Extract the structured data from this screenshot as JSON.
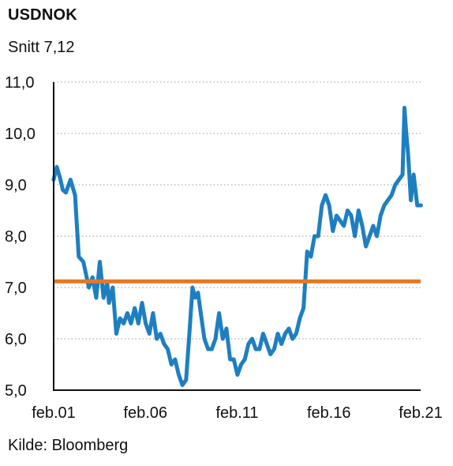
{
  "chart_data": {
    "type": "line",
    "title": "USDNOK",
    "subtitle": "Snitt 7,12",
    "source": "Kilde: Bloomberg",
    "xlabel": "",
    "ylabel": "",
    "x_tick_labels": [
      "feb.01",
      "feb.06",
      "feb.11",
      "feb.16",
      "feb.21"
    ],
    "x_tick_values": [
      2001.083,
      2006.083,
      2011.083,
      2016.083,
      2021.083
    ],
    "xlim": [
      2001.083,
      2021.083
    ],
    "y_tick_labels": [
      "5,0",
      "6,0",
      "7,0",
      "8,0",
      "9,0",
      "10,0",
      "11,0"
    ],
    "y_tick_values": [
      5,
      6,
      7,
      8,
      9,
      10,
      11
    ],
    "ylim": [
      5,
      11
    ],
    "grid": "horizontal dotted",
    "colors": {
      "series": "#1e7fc0",
      "average": "#e87722",
      "grid": "#9a9a9a",
      "axis": "#111111"
    },
    "series": [
      {
        "name": "USDNOK",
        "x": [
          2001.08,
          2001.25,
          2001.42,
          2001.58,
          2001.75,
          2002.0,
          2002.25,
          2002.45,
          2002.7,
          2003.0,
          2003.2,
          2003.4,
          2003.6,
          2003.8,
          2004.0,
          2004.1,
          2004.3,
          2004.5,
          2004.7,
          2004.9,
          2005.1,
          2005.3,
          2005.5,
          2005.7,
          2005.9,
          2006.1,
          2006.3,
          2006.5,
          2006.7,
          2006.9,
          2007.1,
          2007.3,
          2007.5,
          2007.7,
          2007.9,
          2008.1,
          2008.3,
          2008.5,
          2008.65,
          2008.8,
          2008.95,
          2009.1,
          2009.3,
          2009.5,
          2009.7,
          2009.9,
          2010.1,
          2010.3,
          2010.5,
          2010.7,
          2010.9,
          2011.1,
          2011.3,
          2011.5,
          2011.7,
          2011.9,
          2012.1,
          2012.3,
          2012.5,
          2012.7,
          2012.9,
          2013.1,
          2013.3,
          2013.5,
          2013.7,
          2013.9,
          2014.1,
          2014.3,
          2014.5,
          2014.7,
          2014.9,
          2015.1,
          2015.3,
          2015.5,
          2015.7,
          2015.9,
          2016.1,
          2016.3,
          2016.5,
          2016.7,
          2016.9,
          2017.1,
          2017.3,
          2017.5,
          2017.7,
          2017.9,
          2018.1,
          2018.3,
          2018.5,
          2018.7,
          2018.9,
          2019.1,
          2019.3,
          2019.5,
          2019.7,
          2019.9,
          2020.1,
          2020.2,
          2020.28,
          2020.4,
          2020.55,
          2020.7,
          2020.9,
          2021.1
        ],
        "values": [
          9.1,
          9.35,
          9.15,
          8.9,
          8.85,
          9.1,
          8.8,
          7.6,
          7.5,
          7.0,
          7.2,
          6.8,
          7.5,
          6.8,
          7.1,
          6.7,
          7.0,
          6.1,
          6.4,
          6.3,
          6.5,
          6.3,
          6.6,
          6.3,
          6.7,
          6.3,
          6.1,
          6.5,
          6.0,
          6.1,
          5.9,
          5.8,
          5.5,
          5.6,
          5.3,
          5.1,
          5.2,
          6.2,
          7.0,
          6.8,
          6.9,
          6.5,
          6.0,
          5.8,
          5.8,
          6.0,
          6.5,
          6.0,
          6.2,
          5.6,
          5.6,
          5.3,
          5.5,
          5.6,
          5.9,
          6.0,
          5.8,
          5.8,
          6.1,
          5.9,
          5.7,
          5.8,
          6.1,
          5.9,
          6.1,
          6.2,
          6.0,
          6.1,
          6.4,
          6.6,
          7.7,
          7.6,
          8.0,
          8.0,
          8.6,
          8.8,
          8.6,
          8.1,
          8.4,
          8.3,
          8.2,
          8.5,
          8.4,
          8.0,
          8.5,
          8.2,
          7.8,
          8.0,
          8.2,
          8.0,
          8.4,
          8.6,
          8.7,
          8.8,
          9.0,
          9.1,
          9.2,
          10.5,
          10.1,
          9.6,
          8.7,
          9.2,
          8.6,
          8.6
        ]
      },
      {
        "name": "Snitt",
        "x": [
          2001.083,
          2021.083
        ],
        "values": [
          7.12,
          7.12
        ]
      }
    ]
  }
}
